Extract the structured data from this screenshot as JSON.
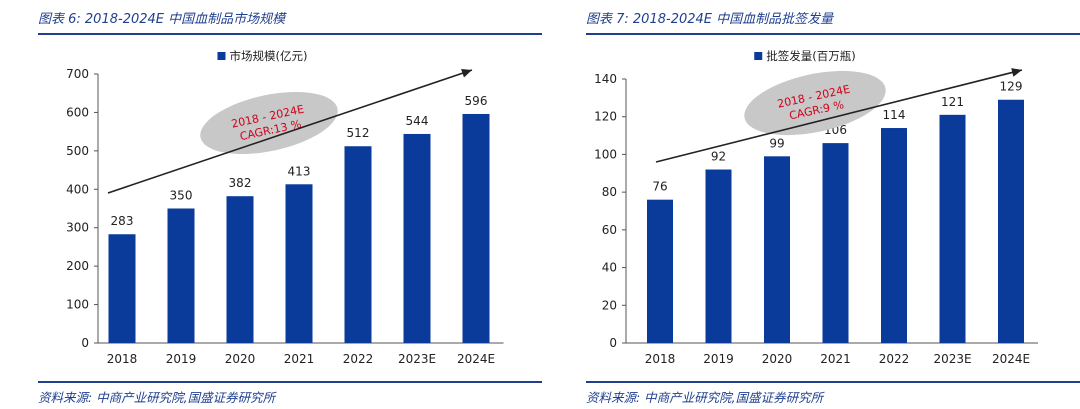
{
  "colors": {
    "bar": "#0a3a9a",
    "accent": "#1f3f8f",
    "cagr_text": "#d0021b",
    "ellipse": "#c8c8c8"
  },
  "charts": [
    {
      "caption": "图表 6:  2018-2024E 中国血制品市场规模",
      "source": "资料来源:  中商产业研究院,国盛证券研究所",
      "cagr_lines": [
        "2018 - 2024E",
        "CAGR:13 %"
      ]
    },
    {
      "caption": "图表 7:  2018-2024E 中国血制品批签发量",
      "source": "资料来源:  中商产业研究院,国盛证券研究所",
      "cagr_lines": [
        "2018 - 2024E",
        "CAGR:9 %"
      ]
    }
  ],
  "chart_data": [
    {
      "type": "bar",
      "categories": [
        "2018",
        "2019",
        "2020",
        "2021",
        "2022",
        "2023E",
        "2024E"
      ],
      "series": [
        {
          "name": "市场规模(亿元)",
          "values": [
            283,
            350,
            382,
            413,
            512,
            544,
            596
          ]
        }
      ],
      "data_labels": [
        "283",
        "350",
        "382",
        "413",
        "512",
        "544",
        "596"
      ],
      "ylim": [
        0,
        700
      ],
      "yticks": [
        "0",
        "100",
        "200",
        "300",
        "400",
        "500",
        "600",
        "700"
      ],
      "grid": false,
      "legend": "top-center"
    },
    {
      "type": "bar",
      "categories": [
        "2018",
        "2019",
        "2020",
        "2021",
        "2022",
        "2023E",
        "2024E"
      ],
      "series": [
        {
          "name": "批签发量(百万瓶)",
          "values": [
            76,
            92,
            99,
            106,
            114,
            121,
            129
          ]
        }
      ],
      "data_labels": [
        "76",
        "92",
        "99",
        "106",
        "114",
        "121",
        "129"
      ],
      "ylim": [
        0,
        140
      ],
      "yticks": [
        "0",
        "20",
        "40",
        "60",
        "80",
        "100",
        "120",
        "140"
      ],
      "grid": false,
      "legend": "top-center"
    }
  ]
}
